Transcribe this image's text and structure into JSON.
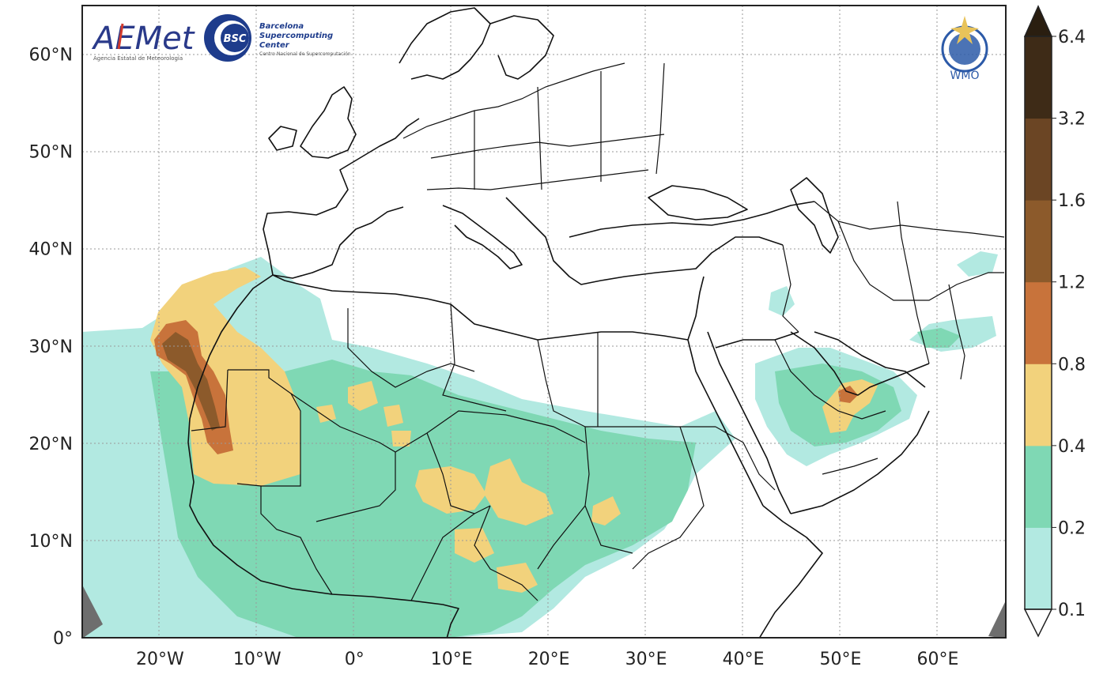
{
  "map": {
    "lon_range": [
      -28,
      67
    ],
    "lat_range": [
      0,
      65
    ],
    "lat_ticks": [
      {
        "value": 0,
        "label": "0°"
      },
      {
        "value": 10,
        "label": "10°N"
      },
      {
        "value": 20,
        "label": "20°N"
      },
      {
        "value": 30,
        "label": "30°N"
      },
      {
        "value": 40,
        "label": "40°N"
      },
      {
        "value": 50,
        "label": "50°N"
      },
      {
        "value": 60,
        "label": "60°N"
      }
    ],
    "lon_ticks": [
      {
        "value": -20,
        "label": "20°W"
      },
      {
        "value": -10,
        "label": "10°W"
      },
      {
        "value": 0,
        "label": "0°"
      },
      {
        "value": 10,
        "label": "10°E"
      },
      {
        "value": 20,
        "label": "20°E"
      },
      {
        "value": 30,
        "label": "30°E"
      },
      {
        "value": 40,
        "label": "40°E"
      },
      {
        "value": 50,
        "label": "50°E"
      },
      {
        "value": 60,
        "label": "60°E"
      }
    ],
    "grid": true,
    "colors": {
      "background": "#ffffff",
      "coast": "#111111",
      "grid": "#9a9a9a",
      "frame": "#222222"
    }
  },
  "colorbar": {
    "placement": "right",
    "levels": [
      {
        "label": "0.1",
        "color": "#b2e9e1"
      },
      {
        "label": "0.2",
        "color": "#7fd8b4"
      },
      {
        "label": "0.4",
        "color": "#f2d27c"
      },
      {
        "label": "0.8",
        "color": "#c8733b"
      },
      {
        "label": "1.2",
        "color": "#8c5a2b"
      },
      {
        "label": "1.6",
        "color": "#6b4524"
      },
      {
        "label": "3.2",
        "color": "#3e2b17"
      },
      {
        "label": "6.4",
        "color": "#2a1e10"
      }
    ],
    "extend": "both"
  },
  "logos": {
    "aemet": {
      "name": "AEMet",
      "subtitle": "Agencia Estatal de Meteorología"
    },
    "bsc": {
      "badge": "BSC",
      "line1": "Barcelona",
      "line2": "Supercomputing",
      "line3": "Center",
      "subtitle": "Centro Nacional de Supercomputación"
    },
    "wmo": {
      "name": "WMO"
    }
  }
}
